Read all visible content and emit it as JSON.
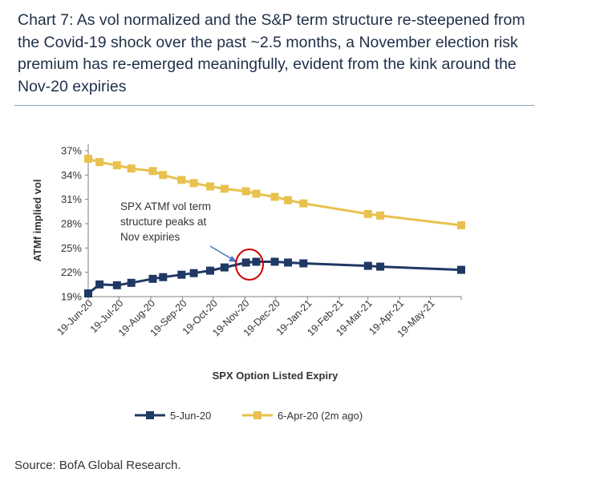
{
  "title": "Chart 7: As vol normalized and the S&P term structure re-steepened from the Covid-19 shock over the past ~2.5 months, a November election risk premium has re-emerged meaningfully, evident from the kink around the Nov-20 expiries",
  "source": "Source: BofA Global Research.",
  "colors": {
    "navy": "#1f3864",
    "gold": "#e8c14e",
    "circle": "#cc0000",
    "arrow": "#4a78c2"
  },
  "chart_data": {
    "type": "line",
    "xlabel": "SPX Option Listed Expiry",
    "ylabel": "ATMf implied vol",
    "ylim": [
      0.19,
      0.37
    ],
    "y_ticks": [
      0.19,
      0.22,
      0.25,
      0.28,
      0.31,
      0.34,
      0.37
    ],
    "y_tick_labels": [
      "19%",
      "22%",
      "25%",
      "28%",
      "31%",
      "34%",
      "37%"
    ],
    "x_range": [
      "2020-06-19",
      "2021-06-18"
    ],
    "x_tick_dates": [
      "2020-06-19",
      "2020-07-19",
      "2020-08-19",
      "2020-09-19",
      "2020-10-19",
      "2020-11-19",
      "2020-12-19",
      "2021-01-19",
      "2021-02-19",
      "2021-03-19",
      "2021-04-19",
      "2021-05-19"
    ],
    "x_tick_labels": [
      "19-Jun-20",
      "19-Jul-20",
      "19-Aug-20",
      "19-Sep-20",
      "19-Oct-20",
      "19-Nov-20",
      "19-Dec-20",
      "19-Jan-21",
      "19-Feb-21",
      "19-Mar-21",
      "19-Apr-21",
      "19-May-21"
    ],
    "annotation": "SPX ATMf vol term structure peaks at Nov expiries",
    "annotation_lines": [
      "SPX ATMf vol term",
      "structure peaks at",
      "Nov expiries"
    ],
    "series": [
      {
        "name": "5-Jun-20",
        "color": "#1f3864",
        "x": [
          "2020-06-19",
          "2020-06-30",
          "2020-07-17",
          "2020-07-31",
          "2020-08-21",
          "2020-08-31",
          "2020-09-18",
          "2020-09-30",
          "2020-10-16",
          "2020-10-30",
          "2020-11-20",
          "2020-11-30",
          "2020-12-18",
          "2020-12-31",
          "2021-01-15",
          "2021-03-19",
          "2021-03-31",
          "2021-06-18"
        ],
        "y": [
          0.194,
          0.205,
          0.204,
          0.207,
          0.212,
          0.214,
          0.217,
          0.219,
          0.222,
          0.226,
          0.232,
          0.233,
          0.233,
          0.232,
          0.231,
          0.228,
          0.227,
          0.223
        ]
      },
      {
        "name": "6-Apr-20 (2m ago)",
        "color": "#e8c14e",
        "x": [
          "2020-06-19",
          "2020-06-30",
          "2020-07-17",
          "2020-07-31",
          "2020-08-21",
          "2020-08-31",
          "2020-09-18",
          "2020-09-30",
          "2020-10-16",
          "2020-10-30",
          "2020-11-20",
          "2020-11-30",
          "2020-12-18",
          "2020-12-31",
          "2021-01-15",
          "2021-03-19",
          "2021-03-31",
          "2021-06-18"
        ],
        "y": [
          0.36,
          0.356,
          0.352,
          0.348,
          0.345,
          0.34,
          0.334,
          0.33,
          0.326,
          0.323,
          0.32,
          0.317,
          0.313,
          0.309,
          0.305,
          0.292,
          0.29,
          0.278
        ]
      }
    ]
  }
}
